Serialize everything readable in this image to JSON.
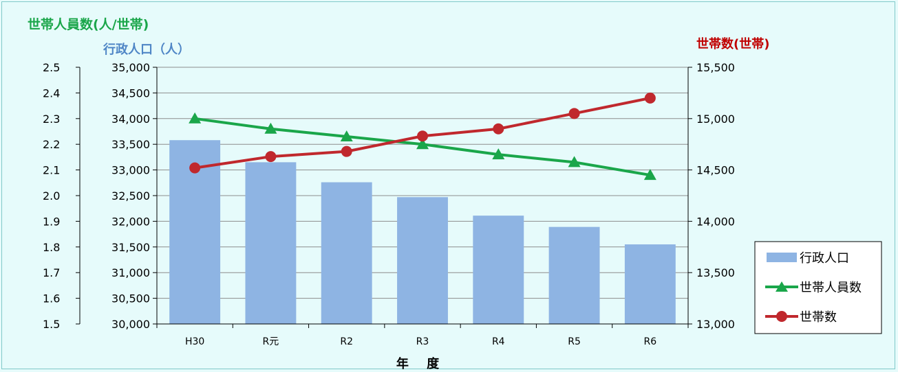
{
  "chart_data": {
    "type": "bar",
    "categories": [
      "H30",
      "R元",
      "R2",
      "R3",
      "R4",
      "R5",
      "R6"
    ],
    "series": [
      {
        "name": "行政人口",
        "kind": "bar",
        "axis": "population",
        "color": "#8eb4e3",
        "values": [
          33580,
          33150,
          32760,
          32470,
          32110,
          31890,
          31550
        ]
      },
      {
        "name": "世帯人員数",
        "kind": "line",
        "axis": "persons_per_household",
        "color": "#1aa64a",
        "marker": "triangle",
        "values": [
          2.3,
          2.26,
          2.23,
          2.2,
          2.16,
          2.13,
          2.08
        ]
      },
      {
        "name": "世帯数",
        "kind": "line",
        "axis": "households",
        "color": "#c0282d",
        "marker": "circle",
        "values": [
          14520,
          14630,
          14680,
          14830,
          14900,
          15050,
          15200
        ]
      }
    ],
    "axes": {
      "persons_per_household": {
        "label": "世帯人員数(人/世帯)",
        "min": 1.5,
        "max": 2.5,
        "step": 0.1,
        "ticks": [
          "1.5",
          "1.6",
          "1.7",
          "1.8",
          "1.9",
          "2.0",
          "2.1",
          "2.2",
          "2.3",
          "2.4",
          "2.5"
        ]
      },
      "population": {
        "label": "行政人口（人）",
        "min": 30000,
        "max": 35000,
        "step": 500,
        "ticks": [
          "30,000",
          "30,500",
          "31,000",
          "31,500",
          "32,000",
          "32,500",
          "33,000",
          "33,500",
          "34,000",
          "34,500",
          "35,000"
        ]
      },
      "households": {
        "label": "世帯数(世帯)",
        "min": 13000,
        "max": 15500,
        "step": 500,
        "ticks": [
          "13,000",
          "13,500",
          "14,000",
          "14,500",
          "15,000",
          "15,500"
        ]
      }
    },
    "xlabel": "年 度",
    "grid": true,
    "legend_position": "right"
  }
}
